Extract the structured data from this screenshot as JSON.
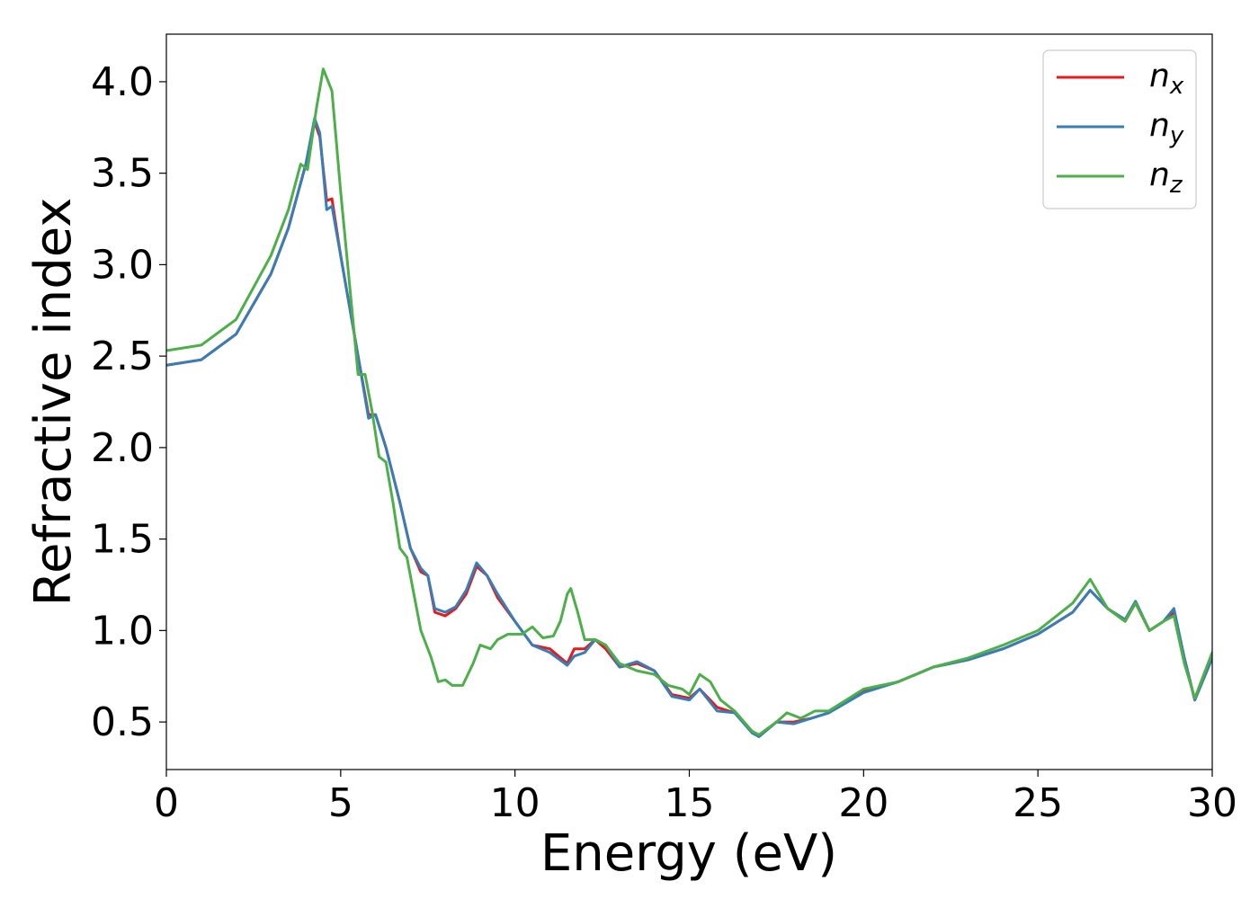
{
  "chart_data": {
    "type": "line",
    "title": "",
    "xlabel": "Energy (eV)",
    "ylabel": "Refractive index",
    "xlim": [
      0,
      30
    ],
    "ylim": [
      0.24,
      4.26
    ],
    "xticks": [
      "0",
      "5",
      "10",
      "15",
      "20",
      "25",
      "30"
    ],
    "xtick_values": [
      0,
      5,
      10,
      15,
      20,
      25,
      30
    ],
    "yticks": [
      "0.5",
      "1.0",
      "1.5",
      "2.0",
      "2.5",
      "3.0",
      "3.5",
      "4.0"
    ],
    "ytick_values": [
      0.5,
      1.0,
      1.5,
      2.0,
      2.5,
      3.0,
      3.5,
      4.0
    ],
    "grid": false,
    "legend_position": "top-right",
    "series": [
      {
        "name": "n_x",
        "label_base": "n",
        "label_sub": "x",
        "color": "#e41a1c",
        "points": [
          [
            0,
            2.45
          ],
          [
            1,
            2.48
          ],
          [
            2,
            2.62
          ],
          [
            3,
            2.95
          ],
          [
            3.5,
            3.2
          ],
          [
            4,
            3.55
          ],
          [
            4.25,
            3.78
          ],
          [
            4.4,
            3.7
          ],
          [
            4.6,
            3.35
          ],
          [
            4.75,
            3.36
          ],
          [
            5,
            3.05
          ],
          [
            5.5,
            2.5
          ],
          [
            5.8,
            2.18
          ],
          [
            6,
            2.18
          ],
          [
            6.3,
            2.0
          ],
          [
            6.7,
            1.7
          ],
          [
            7,
            1.45
          ],
          [
            7.3,
            1.32
          ],
          [
            7.5,
            1.3
          ],
          [
            7.7,
            1.1
          ],
          [
            8,
            1.08
          ],
          [
            8.3,
            1.12
          ],
          [
            8.6,
            1.2
          ],
          [
            8.9,
            1.35
          ],
          [
            9.2,
            1.3
          ],
          [
            9.5,
            1.18
          ],
          [
            10,
            1.05
          ],
          [
            10.5,
            0.92
          ],
          [
            11,
            0.9
          ],
          [
            11.5,
            0.82
          ],
          [
            11.7,
            0.9
          ],
          [
            12,
            0.9
          ],
          [
            12.3,
            0.95
          ],
          [
            12.6,
            0.9
          ],
          [
            13,
            0.8
          ],
          [
            13.5,
            0.82
          ],
          [
            14,
            0.78
          ],
          [
            14.5,
            0.65
          ],
          [
            15,
            0.63
          ],
          [
            15.3,
            0.68
          ],
          [
            15.8,
            0.58
          ],
          [
            16.3,
            0.55
          ],
          [
            16.8,
            0.45
          ],
          [
            17,
            0.42
          ],
          [
            17.5,
            0.5
          ],
          [
            18,
            0.5
          ],
          [
            18.5,
            0.52
          ],
          [
            19,
            0.55
          ],
          [
            20,
            0.67
          ],
          [
            21,
            0.72
          ],
          [
            22,
            0.8
          ],
          [
            23,
            0.84
          ],
          [
            24,
            0.9
          ],
          [
            25,
            0.98
          ],
          [
            26,
            1.1
          ],
          [
            26.5,
            1.22
          ],
          [
            27,
            1.12
          ],
          [
            27.5,
            1.05
          ],
          [
            27.8,
            1.15
          ],
          [
            28.2,
            1.0
          ],
          [
            28.6,
            1.05
          ],
          [
            28.9,
            1.1
          ],
          [
            29.2,
            0.85
          ],
          [
            29.5,
            0.62
          ],
          [
            30,
            0.85
          ]
        ]
      },
      {
        "name": "n_y",
        "label_base": "n",
        "label_sub": "y",
        "color": "#377eb8",
        "points": [
          [
            0,
            2.45
          ],
          [
            1,
            2.48
          ],
          [
            2,
            2.62
          ],
          [
            3,
            2.95
          ],
          [
            3.5,
            3.2
          ],
          [
            4,
            3.55
          ],
          [
            4.25,
            3.8
          ],
          [
            4.4,
            3.72
          ],
          [
            4.6,
            3.3
          ],
          [
            4.75,
            3.32
          ],
          [
            5,
            3.05
          ],
          [
            5.5,
            2.5
          ],
          [
            5.8,
            2.16
          ],
          [
            6,
            2.18
          ],
          [
            6.3,
            2.0
          ],
          [
            6.7,
            1.7
          ],
          [
            7,
            1.45
          ],
          [
            7.3,
            1.34
          ],
          [
            7.5,
            1.3
          ],
          [
            7.7,
            1.12
          ],
          [
            8,
            1.1
          ],
          [
            8.3,
            1.13
          ],
          [
            8.6,
            1.22
          ],
          [
            8.9,
            1.37
          ],
          [
            9.2,
            1.3
          ],
          [
            9.5,
            1.2
          ],
          [
            10,
            1.05
          ],
          [
            10.5,
            0.92
          ],
          [
            11,
            0.88
          ],
          [
            11.5,
            0.81
          ],
          [
            11.7,
            0.86
          ],
          [
            12,
            0.88
          ],
          [
            12.3,
            0.95
          ],
          [
            12.6,
            0.92
          ],
          [
            13,
            0.8
          ],
          [
            13.5,
            0.83
          ],
          [
            14,
            0.78
          ],
          [
            14.5,
            0.64
          ],
          [
            15,
            0.62
          ],
          [
            15.3,
            0.68
          ],
          [
            15.8,
            0.56
          ],
          [
            16.3,
            0.55
          ],
          [
            16.8,
            0.44
          ],
          [
            17,
            0.42
          ],
          [
            17.5,
            0.5
          ],
          [
            18,
            0.49
          ],
          [
            18.5,
            0.52
          ],
          [
            19,
            0.55
          ],
          [
            20,
            0.66
          ],
          [
            21,
            0.72
          ],
          [
            22,
            0.8
          ],
          [
            23,
            0.84
          ],
          [
            24,
            0.9
          ],
          [
            25,
            0.98
          ],
          [
            26,
            1.1
          ],
          [
            26.5,
            1.22
          ],
          [
            27,
            1.12
          ],
          [
            27.5,
            1.06
          ],
          [
            27.8,
            1.16
          ],
          [
            28.2,
            1.0
          ],
          [
            28.6,
            1.05
          ],
          [
            28.9,
            1.12
          ],
          [
            29.2,
            0.85
          ],
          [
            29.5,
            0.62
          ],
          [
            30,
            0.85
          ]
        ]
      },
      {
        "name": "n_z",
        "label_base": "n",
        "label_sub": "z",
        "color": "#4daf4a",
        "points": [
          [
            0,
            2.53
          ],
          [
            1,
            2.56
          ],
          [
            2,
            2.7
          ],
          [
            3,
            3.05
          ],
          [
            3.5,
            3.3
          ],
          [
            3.85,
            3.55
          ],
          [
            4.05,
            3.52
          ],
          [
            4.3,
            3.85
          ],
          [
            4.5,
            4.07
          ],
          [
            4.75,
            3.95
          ],
          [
            5,
            3.4
          ],
          [
            5.3,
            2.8
          ],
          [
            5.5,
            2.4
          ],
          [
            5.7,
            2.4
          ],
          [
            5.9,
            2.2
          ],
          [
            6.1,
            1.95
          ],
          [
            6.3,
            1.92
          ],
          [
            6.5,
            1.7
          ],
          [
            6.7,
            1.45
          ],
          [
            6.9,
            1.4
          ],
          [
            7.1,
            1.2
          ],
          [
            7.3,
            1.0
          ],
          [
            7.6,
            0.85
          ],
          [
            7.8,
            0.72
          ],
          [
            8,
            0.73
          ],
          [
            8.2,
            0.7
          ],
          [
            8.5,
            0.7
          ],
          [
            8.8,
            0.82
          ],
          [
            9,
            0.92
          ],
          [
            9.3,
            0.9
          ],
          [
            9.5,
            0.95
          ],
          [
            9.8,
            0.98
          ],
          [
            10.2,
            0.98
          ],
          [
            10.5,
            1.02
          ],
          [
            10.8,
            0.96
          ],
          [
            11.1,
            0.97
          ],
          [
            11.3,
            1.05
          ],
          [
            11.5,
            1.2
          ],
          [
            11.6,
            1.23
          ],
          [
            11.8,
            1.1
          ],
          [
            12,
            0.95
          ],
          [
            12.3,
            0.95
          ],
          [
            12.6,
            0.92
          ],
          [
            13,
            0.82
          ],
          [
            13.5,
            0.78
          ],
          [
            14,
            0.76
          ],
          [
            14.4,
            0.7
          ],
          [
            14.8,
            0.68
          ],
          [
            15,
            0.65
          ],
          [
            15.3,
            0.76
          ],
          [
            15.6,
            0.72
          ],
          [
            15.9,
            0.62
          ],
          [
            16.3,
            0.56
          ],
          [
            16.8,
            0.45
          ],
          [
            17,
            0.43
          ],
          [
            17.5,
            0.5
          ],
          [
            17.8,
            0.55
          ],
          [
            18.2,
            0.52
          ],
          [
            18.6,
            0.56
          ],
          [
            19,
            0.56
          ],
          [
            20,
            0.68
          ],
          [
            21,
            0.72
          ],
          [
            22,
            0.8
          ],
          [
            23,
            0.85
          ],
          [
            24,
            0.92
          ],
          [
            25,
            1.0
          ],
          [
            26,
            1.15
          ],
          [
            26.5,
            1.28
          ],
          [
            27,
            1.12
          ],
          [
            27.5,
            1.05
          ],
          [
            27.8,
            1.15
          ],
          [
            28.2,
            1.0
          ],
          [
            28.6,
            1.05
          ],
          [
            28.9,
            1.08
          ],
          [
            29.2,
            0.82
          ],
          [
            29.5,
            0.63
          ],
          [
            30,
            0.88
          ]
        ]
      }
    ]
  }
}
